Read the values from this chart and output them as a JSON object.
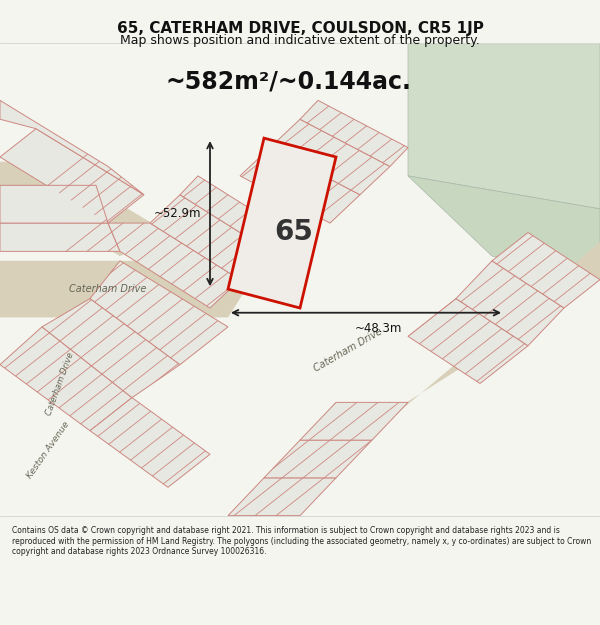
{
  "title": "65, CATERHAM DRIVE, COULSDON, CR5 1JP",
  "subtitle": "Map shows position and indicative extent of the property.",
  "area_text": "~582m²/~0.144ac.",
  "dim_width": "~48.3m",
  "dim_height": "~52.9m",
  "plot_number": "65",
  "footer": "Contains OS data © Crown copyright and database right 2021. This information is subject to Crown copyright and database rights 2023 and is reproduced with the permission of HM Land Registry. The polygons (including the associated geometry, namely x, y co-ordinates) are subject to Crown copyright and database rights 2023 Ordnance Survey 100026316.",
  "bg_color": "#f5f5f0",
  "map_bg": "#eeeee8",
  "plot_outline": "#cc1100",
  "neighbor_outline": "#cc8880",
  "road_color": "#d8d0b8",
  "green_fill": "#d0ddc8",
  "stripe_color": "#cc8880",
  "title_color": "#111111",
  "footer_color": "#222222"
}
